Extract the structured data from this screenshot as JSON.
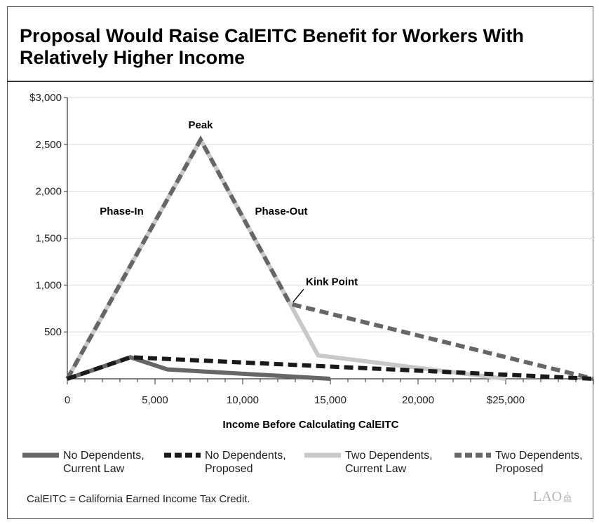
{
  "title": "Proposal Would Raise CalEITC Benefit for Workers With Relatively Higher Income",
  "footnote": "CalEITC = California Earned Income Tax Credit.",
  "logo_text": "LAO",
  "chart_data": {
    "type": "line",
    "title": "Proposal Would Raise CalEITC Benefit for Workers With Relatively Higher Income",
    "xlabel": "Income Before Calculating CalEITC",
    "ylabel": "",
    "xlim": [
      0,
      30000
    ],
    "ylim": [
      0,
      3000
    ],
    "grid": true,
    "x_ticks": [
      {
        "value": 0,
        "label": "0"
      },
      {
        "value": 5000,
        "label": "5,000"
      },
      {
        "value": 10000,
        "label": "10,000"
      },
      {
        "value": 15000,
        "label": "15,000"
      },
      {
        "value": 20000,
        "label": "20,000"
      },
      {
        "value": 25000,
        "label": "$25,000"
      }
    ],
    "y_ticks": [
      {
        "value": 500,
        "label": "500"
      },
      {
        "value": 1000,
        "label": "1,000"
      },
      {
        "value": 1500,
        "label": "1,500"
      },
      {
        "value": 2000,
        "label": "2,000"
      },
      {
        "value": 2500,
        "label": "2,500"
      },
      {
        "value": 3000,
        "label": "$3,000"
      }
    ],
    "legend_position": "bottom",
    "series": [
      {
        "name": "Two Dependents, Current Law",
        "legend_lines": [
          "Two Dependents,",
          "Current Law"
        ],
        "color": "#c8c8c8",
        "style": "solid",
        "points": [
          [
            0,
            0
          ],
          [
            7600,
            2550
          ],
          [
            12700,
            800
          ],
          [
            14300,
            250
          ],
          [
            25000,
            0
          ]
        ]
      },
      {
        "name": "Two Dependents, Proposed",
        "legend_lines": [
          "Two Dependents,",
          "Proposed"
        ],
        "color": "#666666",
        "style": "dashed",
        "points": [
          [
            0,
            0
          ],
          [
            7600,
            2550
          ],
          [
            12700,
            800
          ],
          [
            30000,
            0
          ]
        ]
      },
      {
        "name": "No Dependents, Current Law",
        "legend_lines": [
          "No Dependents,",
          "Current Law"
        ],
        "color": "#666666",
        "style": "solid",
        "points": [
          [
            0,
            0
          ],
          [
            3600,
            230
          ],
          [
            5700,
            100
          ],
          [
            15000,
            0
          ]
        ]
      },
      {
        "name": "No Dependents, Proposed",
        "legend_lines": [
          "No Dependents,",
          "Proposed"
        ],
        "color": "#1a1a1a",
        "style": "dashed",
        "points": [
          [
            0,
            0
          ],
          [
            3600,
            230
          ],
          [
            30000,
            0
          ]
        ]
      }
    ],
    "annotations": [
      {
        "text": "Peak",
        "x": 7600,
        "y": 2550,
        "placement": "above"
      },
      {
        "text": "Phase-In",
        "x": 3100,
        "y": 1750,
        "placement": "center"
      },
      {
        "text": "Phase-Out",
        "x": 12200,
        "y": 1750,
        "placement": "center"
      },
      {
        "text": "Kink Point",
        "x": 15000,
        "y": 1000,
        "placement": "center",
        "arrow_to": [
          12700,
          800
        ]
      }
    ]
  }
}
